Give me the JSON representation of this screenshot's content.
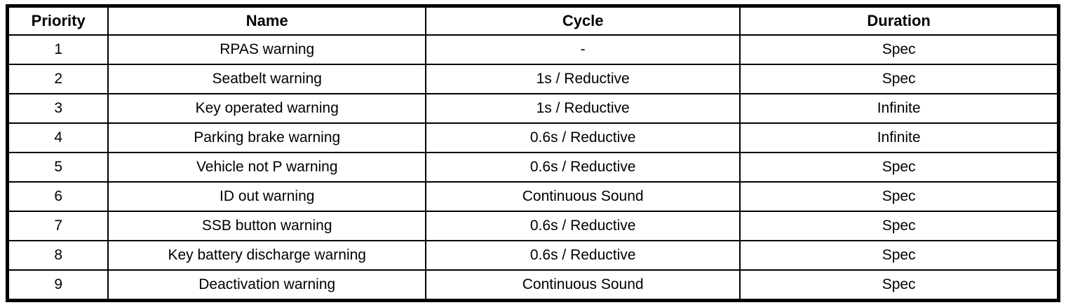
{
  "colors": {
    "border": "#000000",
    "background": "#ffffff",
    "text": "#000000"
  },
  "table": {
    "columns": [
      {
        "key": "priority",
        "label": "Priority"
      },
      {
        "key": "name",
        "label": "Name"
      },
      {
        "key": "cycle",
        "label": "Cycle"
      },
      {
        "key": "duration",
        "label": "Duration"
      }
    ],
    "rows": [
      {
        "priority": "1",
        "name": "RPAS warning",
        "cycle": "-",
        "duration": "Spec"
      },
      {
        "priority": "2",
        "name": "Seatbelt warning",
        "cycle": "1s / Reductive",
        "duration": "Spec"
      },
      {
        "priority": "3",
        "name": "Key operated warning",
        "cycle": "1s / Reductive",
        "duration": "Infinite"
      },
      {
        "priority": "4",
        "name": "Parking brake warning",
        "cycle": "0.6s / Reductive",
        "duration": "Infinite"
      },
      {
        "priority": "5",
        "name": "Vehicle not P warning",
        "cycle": "0.6s / Reductive",
        "duration": "Spec"
      },
      {
        "priority": "6",
        "name": "ID out warning",
        "cycle": "Continuous Sound",
        "duration": "Spec"
      },
      {
        "priority": "7",
        "name": "SSB button warning",
        "cycle": "0.6s / Reductive",
        "duration": "Spec"
      },
      {
        "priority": "8",
        "name": "Key battery discharge warning",
        "cycle": "0.6s / Reductive",
        "duration": "Spec"
      },
      {
        "priority": "9",
        "name": "Deactivation warning",
        "cycle": "Continuous Sound",
        "duration": "Spec"
      }
    ]
  }
}
